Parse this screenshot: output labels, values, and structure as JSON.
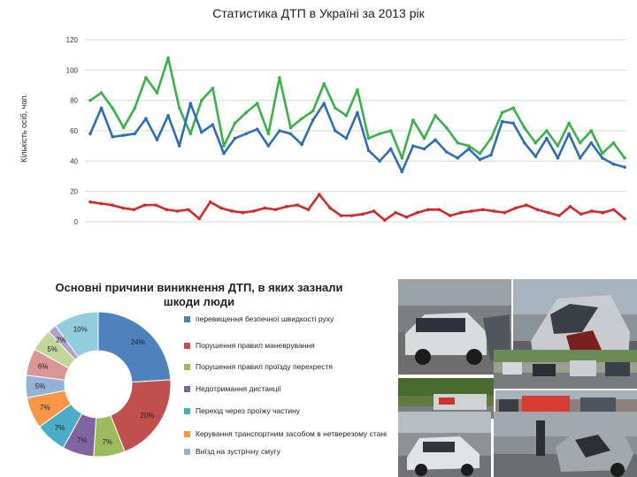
{
  "chart_data": [
    {
      "type": "line",
      "title": "Статистика ДТП в Україні за 2013 рік",
      "ylabel": "Кількість осіб, чол.",
      "xlabel": "",
      "ylim": [
        0,
        120
      ],
      "yticks": [
        "0",
        "20",
        "40",
        "60",
        "80",
        "100",
        "120"
      ],
      "grid": true,
      "series": [
        {
          "color": "#3bb149",
          "values": [
            80,
            85,
            75,
            62,
            75,
            95,
            85,
            108,
            75,
            58,
            80,
            88,
            50,
            65,
            72,
            78,
            58,
            95,
            62,
            68,
            73,
            91,
            75,
            70,
            87,
            55,
            58,
            60,
            42,
            67,
            55,
            70,
            62,
            52,
            50,
            45,
            55,
            72,
            75,
            62,
            52,
            60,
            50,
            65,
            52,
            60,
            45,
            52,
            42
          ]
        },
        {
          "color": "#2f6db5",
          "values": [
            58,
            75,
            56,
            57,
            58,
            68,
            54,
            70,
            50,
            78,
            59,
            64,
            45,
            55,
            58,
            61,
            50,
            60,
            58,
            51,
            67,
            78,
            60,
            55,
            72,
            47,
            40,
            48,
            33,
            50,
            48,
            54,
            46,
            42,
            48,
            41,
            44,
            66,
            65,
            52,
            43,
            55,
            42,
            58,
            42,
            52,
            42,
            38,
            36
          ]
        },
        {
          "color": "#d62728",
          "values": [
            13,
            12,
            11,
            9,
            8,
            11,
            11,
            8,
            7,
            8,
            2,
            13,
            9,
            7,
            6,
            7,
            9,
            8,
            10,
            11,
            8,
            18,
            9,
            4,
            4,
            5,
            7,
            1,
            6,
            3,
            6,
            8,
            8,
            4,
            6,
            7,
            8,
            7,
            6,
            9,
            11,
            8,
            6,
            4,
            10,
            5,
            7,
            6,
            8,
            2
          ]
        }
      ]
    },
    {
      "type": "pie",
      "donut": true,
      "title": "Основні причини виникнення ДТП, в яких зазнали шкоди люди",
      "legend_position": "right",
      "slices": [
        {
          "label": "перевищення безпечної швидкості руху",
          "value": 24,
          "display": "24%",
          "color": "#4f81bd"
        },
        {
          "label": "Порушення правил маневрування",
          "value": 20,
          "display": "20%",
          "color": "#c0504d"
        },
        {
          "label": "Порушення правил проїзду перехрестя",
          "value": 7,
          "display": "7%",
          "color": "#9bbb59"
        },
        {
          "label": "Недотримання дистанції",
          "value": 7,
          "display": "7%",
          "color": "#8064a2"
        },
        {
          "label": "Перехід через проїжу частину",
          "value": 7,
          "display": "7%",
          "color": "#4bacc6"
        },
        {
          "label": "Керування транспортним засобом в нетверезому стані",
          "value": 7,
          "display": "7%",
          "color": "#f79646"
        },
        {
          "label": "Виїзд на зустрічну смугу",
          "value": 5,
          "display": "5%",
          "color": "#95b3d7"
        },
        {
          "label": "",
          "value": 6,
          "display": "6%",
          "color": "#d99694"
        },
        {
          "label": "",
          "value": 5,
          "display": "5%",
          "color": "#c3d69b"
        },
        {
          "label": "",
          "value": 2,
          "display": "2%",
          "color": "#b2a2c7"
        },
        {
          "label": "",
          "value": 10,
          "display": "10%",
          "color": "#93cddd"
        }
      ]
    }
  ]
}
